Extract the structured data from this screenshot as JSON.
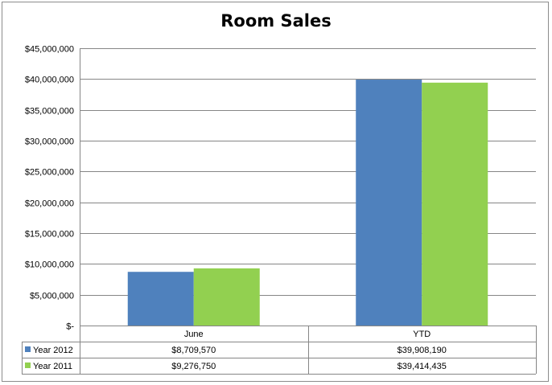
{
  "chart_data": {
    "type": "bar",
    "title": "Room Sales",
    "categories": [
      "June",
      "YTD"
    ],
    "series": [
      {
        "name": "Year 2012",
        "values": [
          8709570,
          39908190
        ],
        "labels": [
          "$8,709,570",
          "$39,908,190"
        ],
        "color": "#4f81bd"
      },
      {
        "name": "Year 2011",
        "values": [
          9276750,
          39414435
        ],
        "labels": [
          "$9,276,750",
          "$39,414,435"
        ],
        "color": "#92d050"
      }
    ],
    "ylim": [
      0,
      45000000
    ],
    "ytick_values": [
      0,
      5000000,
      10000000,
      15000000,
      20000000,
      25000000,
      30000000,
      35000000,
      40000000,
      45000000
    ],
    "ytick_labels": [
      "$-",
      "$5,000,000",
      "$10,000,000",
      "$15,000,000",
      "$20,000,000",
      "$25,000,000",
      "$30,000,000",
      "$35,000,000",
      "$40,000,000",
      "$45,000,000"
    ],
    "grid": true,
    "legend": "data-table",
    "gridline_color": "#868686"
  }
}
